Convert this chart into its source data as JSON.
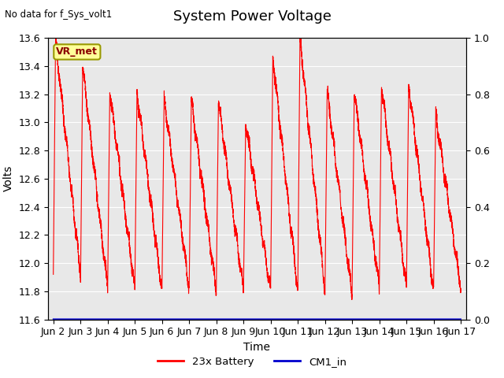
{
  "title": "System Power Voltage",
  "no_data_label": "No data for f_Sys_volt1",
  "xlabel": "Time",
  "ylabel": "Volts",
  "ylim_left": [
    11.6,
    13.6
  ],
  "ylim_right": [
    0.0,
    1.0
  ],
  "yticks_left": [
    11.6,
    11.8,
    12.0,
    12.2,
    12.4,
    12.6,
    12.8,
    13.0,
    13.2,
    13.4,
    13.6
  ],
  "yticks_right": [
    0.0,
    0.2,
    0.4,
    0.6,
    0.8,
    1.0
  ],
  "xtick_labels": [
    "Jun 2",
    "Jun 3",
    "Jun 4",
    "Jun 5",
    "Jun 6",
    "Jun 7",
    "Jun 8",
    "Jun 9",
    "Jun 10",
    "Jun 11",
    "Jun 12",
    "Jun 13",
    "Jun 14",
    "Jun 15",
    "Jun 16",
    "Jun 17"
  ],
  "fig_bg_color": "#ffffff",
  "plot_bg_color": "#e8e8e8",
  "line_color_battery": "#ff0000",
  "line_color_cm1": "#0000cd",
  "legend_battery": "23x Battery",
  "legend_cm1": "CM1_in",
  "vr_met_label": "VR_met",
  "vr_met_bg": "#ffff99",
  "vr_met_border": "#999900",
  "title_fontsize": 13,
  "axis_fontsize": 10,
  "tick_fontsize": 9
}
